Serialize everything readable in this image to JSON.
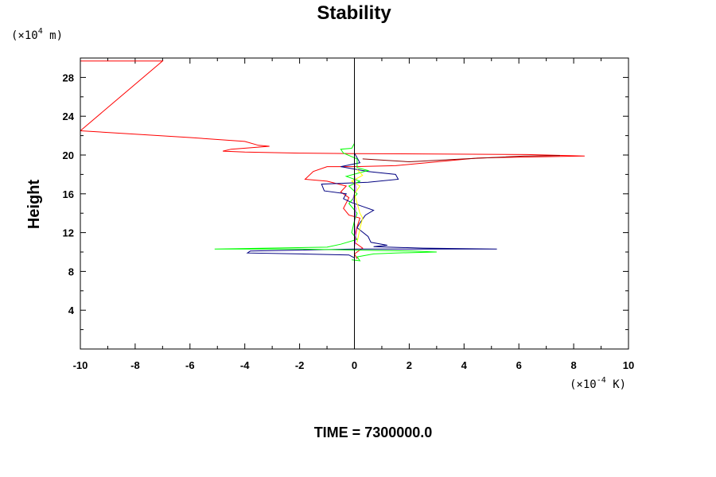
{
  "chart_data": {
    "type": "line",
    "title": "Stability",
    "xlabel": "",
    "ylabel": "Height",
    "x_unit": {
      "base": "(×10",
      "exp": "-4",
      "suffix": " K)"
    },
    "y_unit": {
      "base": "(×10",
      "exp": "4",
      "suffix": " m)"
    },
    "xlim": [
      -10,
      10
    ],
    "ylim": [
      0,
      30
    ],
    "x_ticks": [
      -10,
      -8,
      -6,
      -4,
      -2,
      0,
      2,
      4,
      6,
      8,
      10
    ],
    "y_ticks": [
      4,
      8,
      12,
      16,
      20,
      24,
      28
    ],
    "zero_line": true,
    "series": [
      {
        "name": "red",
        "color": "#ff0000",
        "points": [
          [
            -10,
            29.7
          ],
          [
            -7,
            29.7
          ],
          [
            -10,
            22.5
          ],
          [
            -6,
            21.8
          ],
          [
            -4,
            21.4
          ],
          [
            -3.5,
            21
          ],
          [
            -3.1,
            20.9
          ],
          [
            -4.5,
            20.6
          ],
          [
            -4.8,
            20.4
          ],
          [
            -4,
            20.3
          ],
          [
            -2,
            20.2
          ],
          [
            0,
            20.15
          ],
          [
            6.3,
            20.05
          ],
          [
            8.4,
            19.9
          ],
          [
            4.5,
            19.7
          ],
          [
            1.5,
            18.9
          ],
          [
            0,
            18.8
          ],
          [
            -1,
            18.8
          ],
          [
            -1.5,
            18.3
          ],
          [
            -1.8,
            17.5
          ],
          [
            -1,
            17.3
          ],
          [
            -0.3,
            16.8
          ],
          [
            -0.5,
            16.2
          ],
          [
            -0.2,
            15.6
          ],
          [
            -0.4,
            14.5
          ],
          [
            -0.2,
            13.8
          ],
          [
            0.2,
            13.5
          ],
          [
            0.1,
            12.6
          ],
          [
            0,
            11
          ],
          [
            0.3,
            10.4
          ],
          [
            0,
            9.8
          ],
          [
            0.1,
            9.3
          ]
        ]
      },
      {
        "name": "darkred",
        "color": "#8b0000",
        "points": [
          [
            0.3,
            19.6
          ],
          [
            2,
            19.3
          ],
          [
            4,
            19.6
          ],
          [
            6.2,
            19.9
          ],
          [
            7.5,
            19.95
          ]
        ]
      },
      {
        "name": "navy",
        "color": "#000080",
        "points": [
          [
            0,
            20.2
          ],
          [
            0.2,
            19.2
          ],
          [
            -0.5,
            18.8
          ],
          [
            0.5,
            18.3
          ],
          [
            1.5,
            18
          ],
          [
            1.6,
            17.5
          ],
          [
            0.5,
            17.2
          ],
          [
            -1.2,
            17
          ],
          [
            -1.1,
            16.3
          ],
          [
            -0.3,
            16
          ],
          [
            -0.4,
            15.5
          ],
          [
            -0.1,
            15.1
          ],
          [
            0.3,
            14.7
          ],
          [
            0.7,
            14.3
          ],
          [
            0.4,
            13.8
          ],
          [
            0.2,
            13
          ],
          [
            0.1,
            12.5
          ],
          [
            0.5,
            11.6
          ],
          [
            0.6,
            11
          ],
          [
            1.2,
            10.7
          ],
          [
            0.7,
            10.55
          ],
          [
            2.5,
            10.4
          ],
          [
            5.2,
            10.3
          ],
          [
            3.5,
            10.3
          ],
          [
            0,
            10.3
          ],
          [
            -3.8,
            10.1
          ],
          [
            -3.9,
            9.9
          ],
          [
            -2,
            9.8
          ],
          [
            -0.2,
            9.7
          ],
          [
            0,
            9.4
          ]
        ]
      },
      {
        "name": "green",
        "color": "#00ff00",
        "points": [
          [
            0,
            21.2
          ],
          [
            -0.1,
            20.7
          ],
          [
            -0.5,
            20.6
          ],
          [
            -0.4,
            20.2
          ],
          [
            0.1,
            19.6
          ],
          [
            0.1,
            18.7
          ],
          [
            0.5,
            18.4
          ],
          [
            -0.3,
            17.8
          ],
          [
            0.2,
            17.3
          ],
          [
            -0.2,
            16.8
          ],
          [
            0.1,
            16
          ],
          [
            -0.2,
            15
          ],
          [
            0.1,
            14
          ],
          [
            0,
            13.2
          ],
          [
            -0.1,
            12
          ],
          [
            0.1,
            11.3
          ],
          [
            -0.5,
            10.8
          ],
          [
            -1,
            10.5
          ],
          [
            -5.1,
            10.3
          ],
          [
            -2,
            10.3
          ],
          [
            0.2,
            10.2
          ],
          [
            2.1,
            10.1
          ],
          [
            3,
            10
          ],
          [
            1.5,
            9.9
          ],
          [
            0.7,
            9.8
          ],
          [
            0.1,
            9.5
          ],
          [
            0.2,
            9.1
          ],
          [
            -0.1,
            9.2
          ]
        ]
      },
      {
        "name": "yellow",
        "color": "#ffff00",
        "points": [
          [
            0.1,
            18.5
          ],
          [
            0.3,
            17.9
          ],
          [
            -0.1,
            17.3
          ],
          [
            0.2,
            16.8
          ],
          [
            0,
            16
          ],
          [
            0.2,
            14
          ],
          [
            0.3,
            13.5
          ],
          [
            0.2,
            12.4
          ],
          [
            0.1,
            11
          ]
        ]
      },
      {
        "name": "purple",
        "color": "#a020f0",
        "points": [
          [
            0,
            18
          ],
          [
            0.05,
            16.5
          ],
          [
            -0.05,
            15.5
          ],
          [
            0.05,
            14.5
          ],
          [
            0,
            13
          ],
          [
            0.05,
            11.5
          ],
          [
            0,
            10.5
          ]
        ]
      }
    ]
  },
  "footer": {
    "label": "TIME = 7300000.0"
  }
}
